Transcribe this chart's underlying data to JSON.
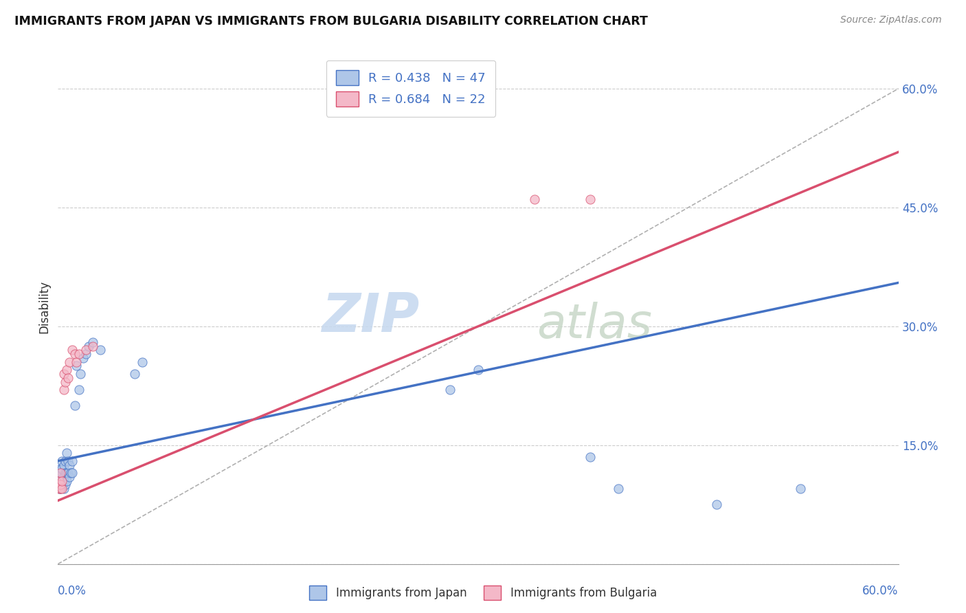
{
  "title": "IMMIGRANTS FROM JAPAN VS IMMIGRANTS FROM BULGARIA DISABILITY CORRELATION CHART",
  "source": "Source: ZipAtlas.com",
  "ylabel": "Disability",
  "legend_japan": "Immigrants from Japan",
  "legend_bulgaria": "Immigrants from Bulgaria",
  "japan_r": 0.438,
  "japan_n": 47,
  "bulgaria_r": 0.684,
  "bulgaria_n": 22,
  "japan_color": "#aec6e8",
  "bulgaria_color": "#f4b8c8",
  "japan_line_color": "#4472c4",
  "bulgaria_line_color": "#d94f6e",
  "xmin": 0.0,
  "xmax": 0.6,
  "ymin": 0.0,
  "ymax": 0.65,
  "yticks": [
    0.0,
    0.15,
    0.3,
    0.45,
    0.6
  ],
  "ytick_labels": [
    "",
    "15.0%",
    "30.0%",
    "45.0%",
    "60.0%"
  ],
  "japan_trend_x0": 0.0,
  "japan_trend_y0": 0.13,
  "japan_trend_x1": 0.6,
  "japan_trend_y1": 0.355,
  "bulgaria_trend_x0": 0.0,
  "bulgaria_trend_y0": 0.08,
  "bulgaria_trend_x1": 0.6,
  "bulgaria_trend_y1": 0.52,
  "japan_points": [
    [
      0.001,
      0.095
    ],
    [
      0.001,
      0.1
    ],
    [
      0.001,
      0.105
    ],
    [
      0.001,
      0.11
    ],
    [
      0.002,
      0.095
    ],
    [
      0.002,
      0.1
    ],
    [
      0.002,
      0.105
    ],
    [
      0.002,
      0.115
    ],
    [
      0.002,
      0.12
    ],
    [
      0.003,
      0.1
    ],
    [
      0.003,
      0.115
    ],
    [
      0.003,
      0.12
    ],
    [
      0.003,
      0.13
    ],
    [
      0.004,
      0.095
    ],
    [
      0.004,
      0.105
    ],
    [
      0.004,
      0.11
    ],
    [
      0.004,
      0.125
    ],
    [
      0.005,
      0.1
    ],
    [
      0.005,
      0.115
    ],
    [
      0.005,
      0.13
    ],
    [
      0.006,
      0.105
    ],
    [
      0.006,
      0.115
    ],
    [
      0.006,
      0.14
    ],
    [
      0.007,
      0.115
    ],
    [
      0.007,
      0.13
    ],
    [
      0.008,
      0.11
    ],
    [
      0.008,
      0.125
    ],
    [
      0.009,
      0.115
    ],
    [
      0.01,
      0.115
    ],
    [
      0.01,
      0.13
    ],
    [
      0.012,
      0.2
    ],
    [
      0.013,
      0.25
    ],
    [
      0.015,
      0.22
    ],
    [
      0.016,
      0.24
    ],
    [
      0.018,
      0.26
    ],
    [
      0.02,
      0.265
    ],
    [
      0.022,
      0.275
    ],
    [
      0.025,
      0.28
    ],
    [
      0.03,
      0.27
    ],
    [
      0.055,
      0.24
    ],
    [
      0.06,
      0.255
    ],
    [
      0.28,
      0.22
    ],
    [
      0.3,
      0.245
    ],
    [
      0.38,
      0.135
    ],
    [
      0.4,
      0.095
    ],
    [
      0.47,
      0.075
    ],
    [
      0.53,
      0.095
    ]
  ],
  "bulgaria_points": [
    [
      0.001,
      0.095
    ],
    [
      0.001,
      0.1
    ],
    [
      0.001,
      0.105
    ],
    [
      0.002,
      0.095
    ],
    [
      0.002,
      0.1
    ],
    [
      0.002,
      0.115
    ],
    [
      0.003,
      0.095
    ],
    [
      0.003,
      0.105
    ],
    [
      0.004,
      0.22
    ],
    [
      0.004,
      0.24
    ],
    [
      0.005,
      0.23
    ],
    [
      0.006,
      0.245
    ],
    [
      0.007,
      0.235
    ],
    [
      0.008,
      0.255
    ],
    [
      0.01,
      0.27
    ],
    [
      0.012,
      0.265
    ],
    [
      0.013,
      0.255
    ],
    [
      0.015,
      0.265
    ],
    [
      0.02,
      0.27
    ],
    [
      0.025,
      0.275
    ],
    [
      0.34,
      0.46
    ],
    [
      0.38,
      0.46
    ]
  ]
}
